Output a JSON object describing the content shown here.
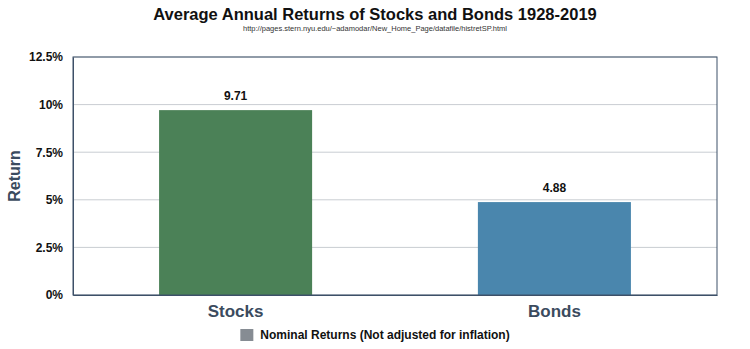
{
  "chart_data": {
    "type": "bar",
    "title": "Average Annual Returns of Stocks and Bonds 1928-2019",
    "subtitle": "http://pages.stern.nyu.edu/~adamodar/New_Home_Page/datafile/histretSP.html",
    "y_label": "Return",
    "categories": [
      "Stocks",
      "Bonds"
    ],
    "series": [
      {
        "name": "Nominal Returns (Not adjusted for inflation)",
        "color": "#868c93",
        "colors": [
          "#4b8157",
          "#4a86ad"
        ],
        "values": [
          9.71,
          4.88
        ]
      }
    ],
    "ylim": [
      0,
      12.5
    ],
    "yticks": [
      {
        "value": 0,
        "label": "0%"
      },
      {
        "value": 2.5,
        "label": "2.5%"
      },
      {
        "value": 5,
        "label": "5%"
      },
      {
        "value": 7.5,
        "label": "7.5%"
      },
      {
        "value": 10,
        "label": "10%"
      },
      {
        "value": 12.5,
        "label": "12.5%"
      }
    ],
    "grid": true,
    "legend": "bottom",
    "data_labels": true
  }
}
